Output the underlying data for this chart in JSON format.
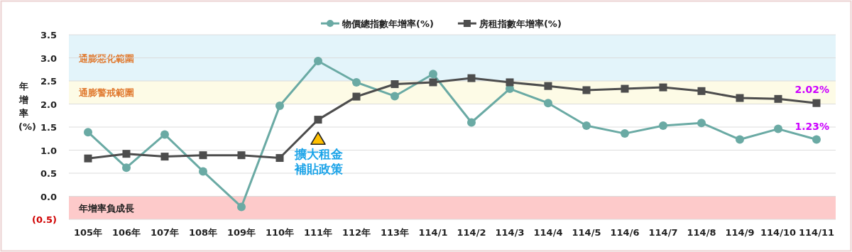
{
  "chart_data": {
    "type": "line",
    "ylabel": "年增率(%)",
    "categories": [
      "105年",
      "106年",
      "107年",
      "108年",
      "109年",
      "110年",
      "111年",
      "112年",
      "113年",
      "114/1",
      "114/2",
      "114/3",
      "114/4",
      "114/5",
      "114/6",
      "114/7",
      "114/8",
      "114/9",
      "114/10",
      "114/11"
    ],
    "series": [
      {
        "name": "物價總指數年增率(%)",
        "color": "#6aaaa4",
        "marker": "circle",
        "values": [
          1.39,
          0.62,
          1.34,
          0.54,
          -0.23,
          1.96,
          2.93,
          2.47,
          2.17,
          2.65,
          1.6,
          2.33,
          2.02,
          1.53,
          1.36,
          1.53,
          1.59,
          1.23,
          1.46,
          1.23
        ],
        "value_labels": [
          null,
          null,
          null,
          null,
          null,
          null,
          null,
          null,
          null,
          null,
          null,
          null,
          null,
          null,
          null,
          null,
          null,
          null,
          null,
          "1.23%"
        ]
      },
      {
        "name": "房租指數年增率(%)",
        "color": "#4d4d4d",
        "marker": "square",
        "values": [
          0.82,
          0.92,
          0.86,
          0.89,
          0.89,
          0.83,
          1.66,
          2.16,
          2.43,
          2.47,
          2.56,
          2.47,
          2.39,
          2.3,
          2.33,
          2.36,
          2.28,
          2.13,
          2.11,
          2.02
        ],
        "value_labels": [
          null,
          null,
          null,
          null,
          null,
          null,
          null,
          null,
          null,
          null,
          null,
          null,
          null,
          null,
          null,
          null,
          null,
          null,
          null,
          "2.02%"
        ]
      }
    ],
    "ylim": [
      -0.5,
      3.5
    ],
    "yticks": [
      {
        "value": -0.5,
        "label": "(0.5)"
      },
      {
        "value": 0,
        "label": "0.0"
      },
      {
        "value": 0.5,
        "label": "0.5"
      },
      {
        "value": 1,
        "label": "1.0"
      },
      {
        "value": 1.5,
        "label": "1.5"
      },
      {
        "value": 2,
        "label": "2.0"
      },
      {
        "value": 2.5,
        "label": "2.5"
      },
      {
        "value": 3,
        "label": "3.0"
      },
      {
        "value": 3.5,
        "label": "3.5"
      }
    ],
    "grid": "y",
    "legend": "top",
    "bands": [
      {
        "axis": "y",
        "from": 2.5,
        "to": 3.5,
        "label": "通膨惡化範圍",
        "color": "#e3f4fa"
      },
      {
        "axis": "y",
        "from": 2,
        "to": 2.5,
        "label": "通膨警戒範圍",
        "color": "#fdfbe6"
      },
      {
        "axis": "y",
        "from": -0.5,
        "to": 0,
        "label": "年增率負成長",
        "color": "#fdcaca"
      }
    ],
    "annotations": [
      {
        "text": "擴大租金補貼政策",
        "x": "111年",
        "y": 1.25
      }
    ]
  }
}
